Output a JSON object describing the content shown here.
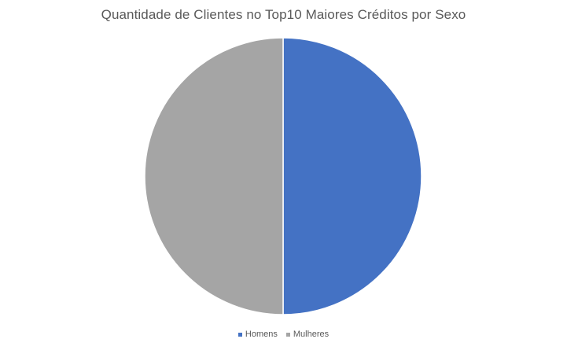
{
  "chart_data": {
    "type": "pie",
    "title": "Quantidade de Clientes no Top10 Maiores Créditos por Sexo",
    "categories": [
      "Homens",
      "Mulheres"
    ],
    "values": [
      5,
      5
    ],
    "colors": [
      "#4472C4",
      "#A5A5A5"
    ],
    "legend_position": "bottom"
  }
}
